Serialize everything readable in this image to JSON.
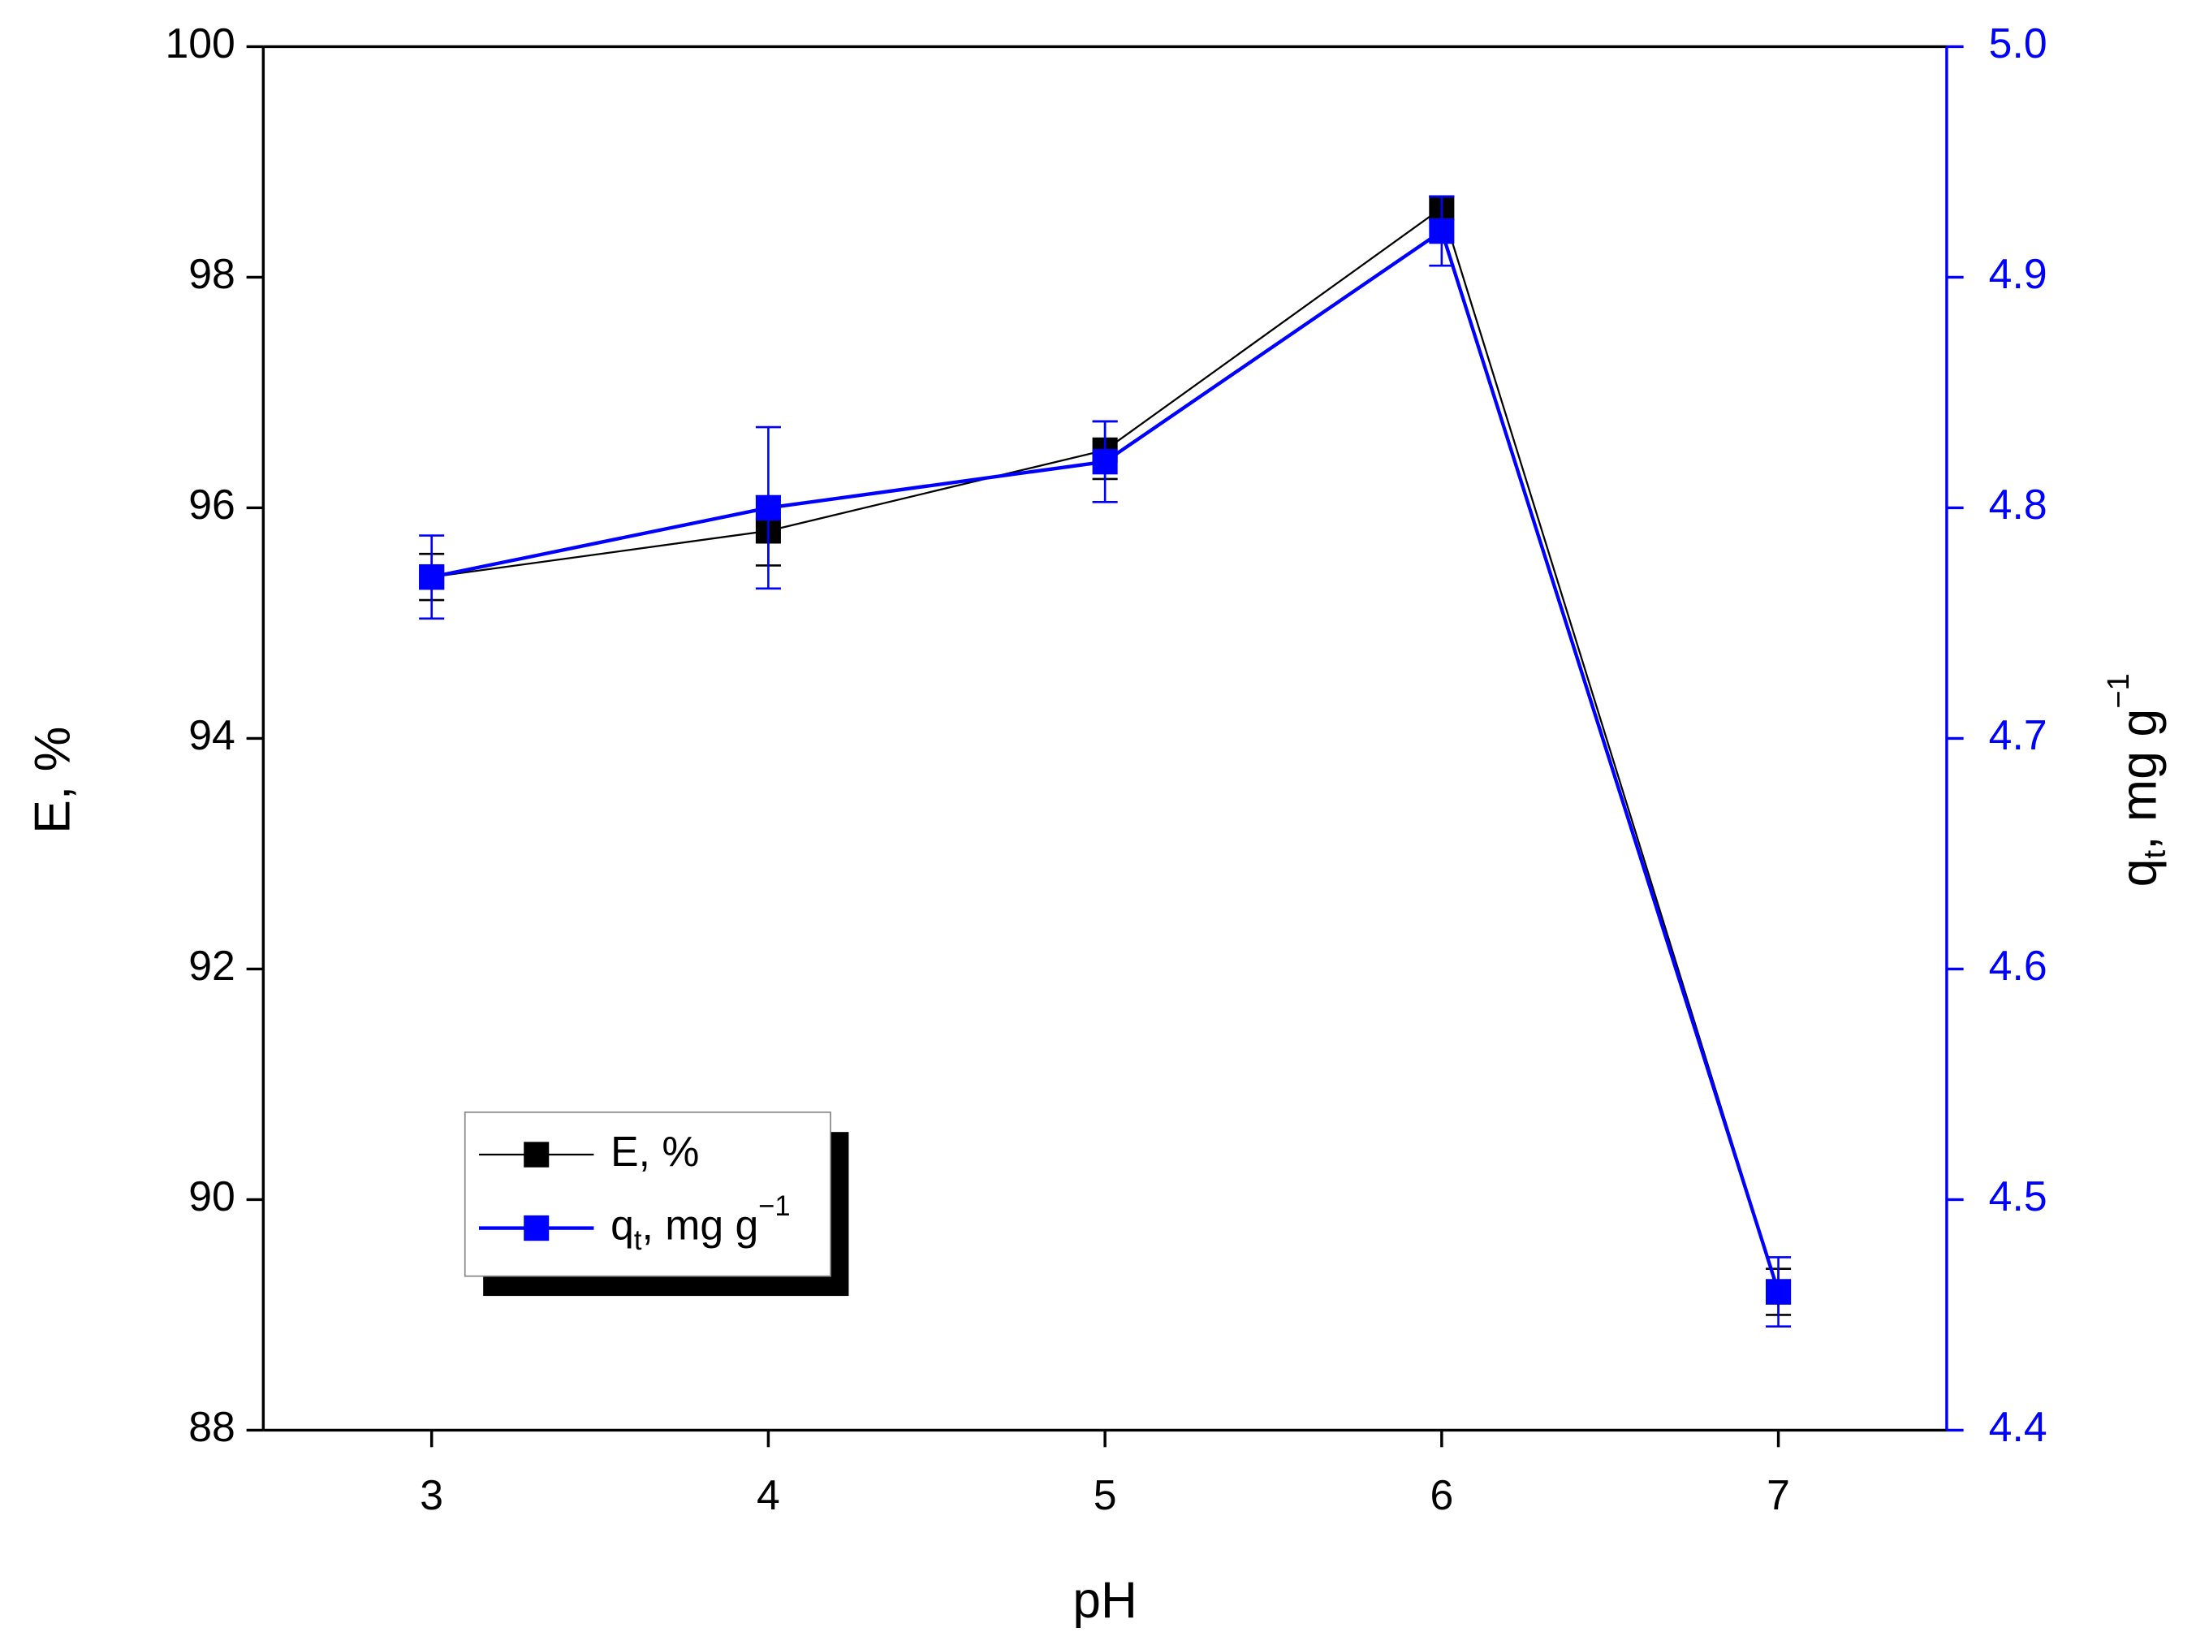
{
  "chart_data": {
    "type": "line",
    "x_label": "pH",
    "y_label": "E, %",
    "y2_label": [
      "q",
      "t",
      ", mg g",
      "−1"
    ],
    "x": [
      3,
      4,
      5,
      6,
      7
    ],
    "xlim": [
      2.5,
      7.5
    ],
    "xticks": [
      3,
      4,
      5,
      6,
      7
    ],
    "ylim": [
      88,
      100
    ],
    "yticks": [
      88,
      90,
      92,
      94,
      96,
      98,
      100
    ],
    "y2lim": [
      4.4,
      5.0
    ],
    "y2ticks": [
      {
        "value": 4.4,
        "label": "4.4"
      },
      4.5,
      4.6,
      4.7,
      4.8,
      4.9,
      {
        "value": 5,
        "label": "5.0"
      }
    ],
    "y2_color": "#0000ff",
    "legend": "lower-left",
    "series": [
      {
        "name": [
          "E, %"
        ],
        "color": "#000000",
        "values": [
          95.4,
          95.8,
          96.5,
          98.6,
          89.2
        ],
        "errors": [
          0.2,
          0.3,
          0.25,
          0.1,
          0.2
        ]
      },
      {
        "name": [
          "q",
          "t",
          ", mg g",
          "−1"
        ],
        "color": "#0000ff",
        "axis": "y2",
        "values": [
          4.77,
          4.8,
          4.82,
          4.92,
          4.46
        ],
        "errors": [
          0.018,
          0.035,
          0.0175,
          0.015,
          0.015
        ]
      }
    ]
  }
}
